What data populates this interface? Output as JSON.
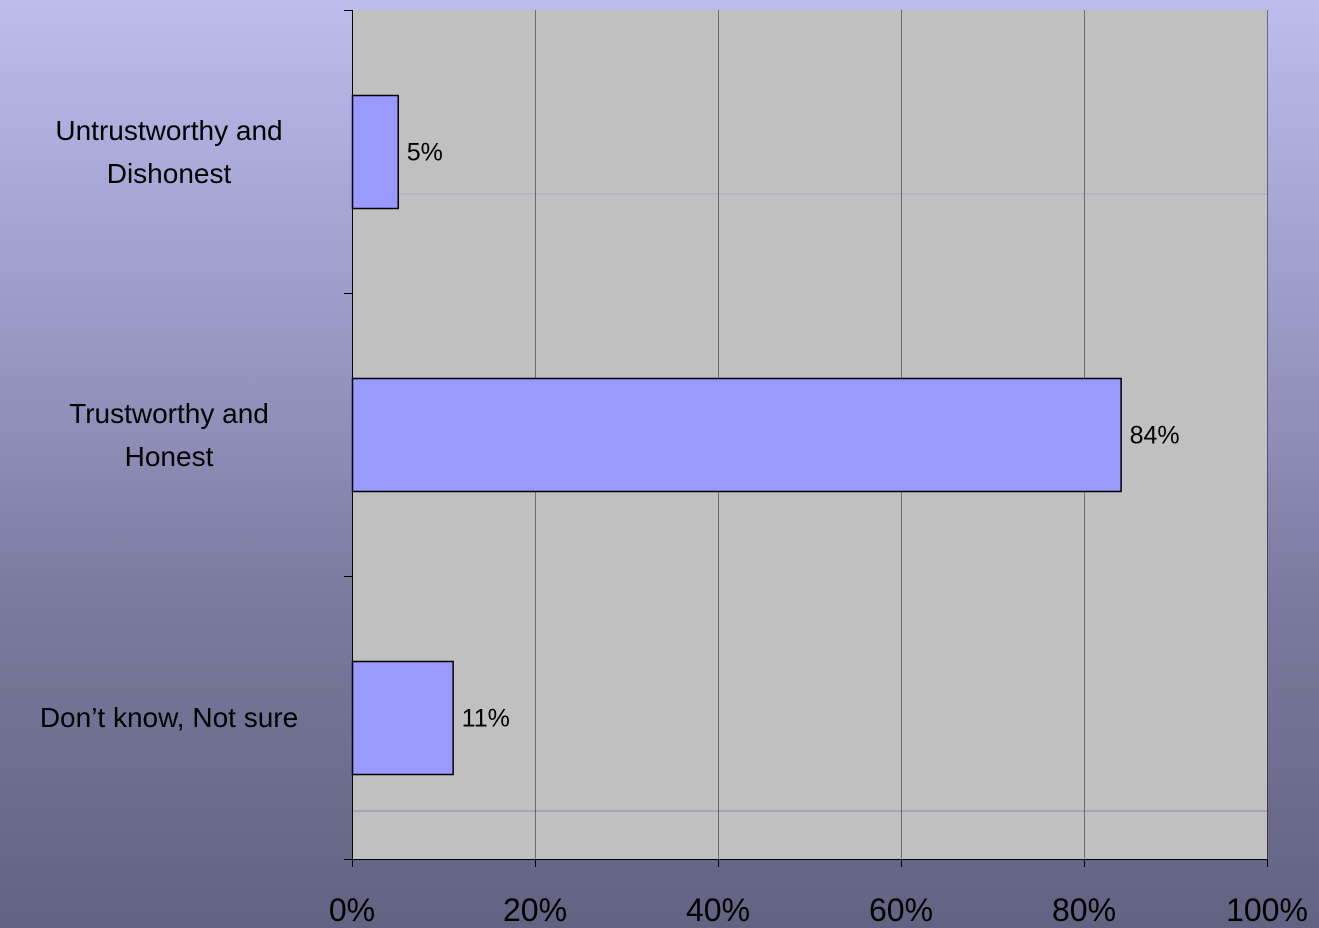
{
  "chart_data": {
    "type": "bar",
    "orientation": "horizontal",
    "categories": [
      "Untrustworthy and Dishonest",
      "Trustworthy and Honest",
      "Don’t know, Not sure"
    ],
    "category_lines": [
      [
        "Untrustworthy and",
        "Dishonest"
      ],
      [
        "Trustworthy and",
        "Honest"
      ],
      [
        "Don’t know, Not sure"
      ]
    ],
    "values": [
      5,
      84,
      11
    ],
    "data_labels": [
      "5%",
      "84%",
      "11%"
    ],
    "x_ticks": [
      0,
      20,
      40,
      60,
      80,
      100
    ],
    "x_tick_labels": [
      "0%",
      "20%",
      "40%",
      "60%",
      "80%",
      "100%"
    ],
    "xlim": [
      0,
      100
    ],
    "title": "",
    "xlabel": "",
    "ylabel": "",
    "grid": true,
    "legend": "none"
  },
  "colors": {
    "plot_background": "#c0c0c0",
    "bar_fill": "#9999ff",
    "bar_stroke": "#000000",
    "gridline": "#000000",
    "background_top": "#bcbcee",
    "background_bottom": "#626282"
  }
}
